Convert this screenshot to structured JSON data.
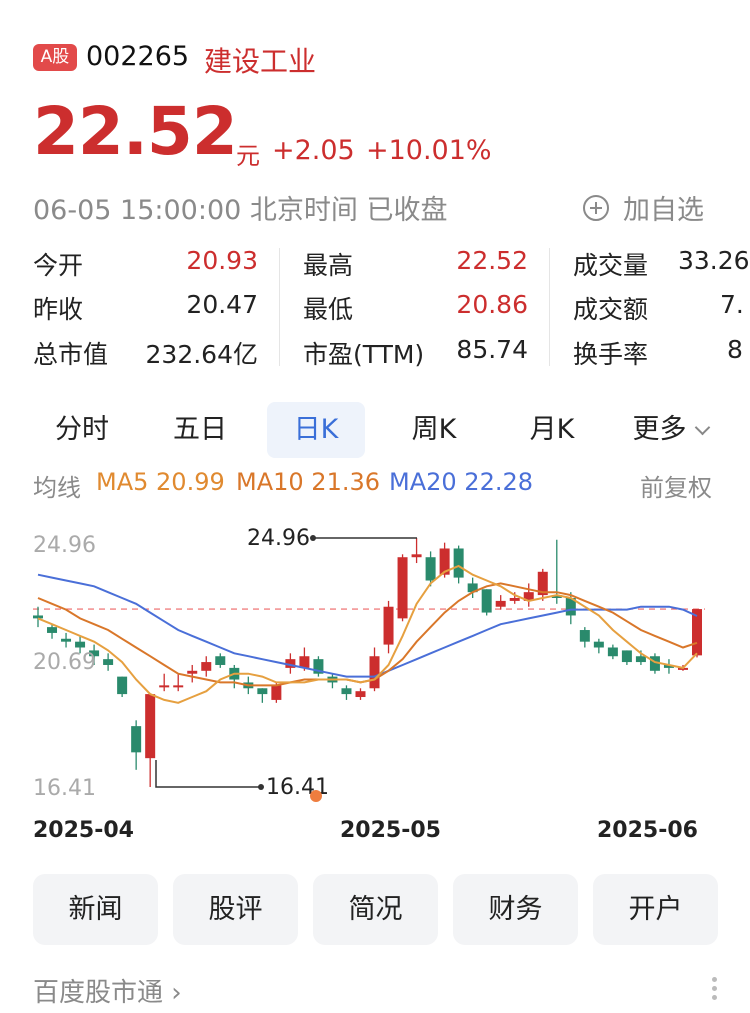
{
  "header": {
    "badge": "A股",
    "code": "002265",
    "name": "建设工业",
    "price": "22.52",
    "unit": "元",
    "change": "+2.05",
    "change_pct": "+10.01%",
    "time": "06-05 15:00:00 北京时间 已收盘",
    "add_watch": "加自选"
  },
  "stats": {
    "open_label": "今开",
    "open": "20.93",
    "prev_label": "昨收",
    "prev": "20.47",
    "mcap_label": "总市值",
    "mcap": "232.64亿",
    "high_label": "最高",
    "high": "22.52",
    "low_label": "最低",
    "low": "20.86",
    "pe_label": "市盈(TTM)",
    "pe": "85.74",
    "vol_label": "成交量",
    "vol": "33.26",
    "amt_label": "成交额",
    "amt": "7.",
    "turn_label": "换手率",
    "turn": "8"
  },
  "tabs": [
    "分时",
    "五日",
    "日K",
    "周K",
    "月K",
    "更多"
  ],
  "active_tab": "日K",
  "ma": {
    "label": "均线",
    "ma5": "MA5 20.99",
    "ma10": "MA10 21.36",
    "ma20": "MA20 22.28",
    "adjust": "前复权"
  },
  "colors": {
    "up": "#cc2e2e",
    "down": "#2a8a6c",
    "ma5": "#e08a30",
    "ma10": "#d9772a",
    "ma20": "#4a6fd8",
    "accent": "#3a6fd8"
  },
  "chart_data": {
    "type": "candlestick",
    "ylim": [
      16.41,
      24.96
    ],
    "y_ticks": [
      "24.96",
      "20.69",
      "16.41"
    ],
    "x_labels": [
      "2025-04",
      "2025-05",
      "2025-06"
    ],
    "max_label": "24.96",
    "min_label": "16.41",
    "last_close": 22.52,
    "candles": [
      [
        22.3,
        22.2,
        22.6,
        21.9
      ],
      [
        21.9,
        21.7,
        22.0,
        21.5
      ],
      [
        21.5,
        21.4,
        21.7,
        21.2
      ],
      [
        21.4,
        21.2,
        21.6,
        21.0
      ],
      [
        21.1,
        20.9,
        21.3,
        20.6
      ],
      [
        20.8,
        20.6,
        21.0,
        20.4
      ],
      [
        20.2,
        19.6,
        20.2,
        19.5
      ],
      [
        18.5,
        17.6,
        18.7,
        17.0
      ],
      [
        17.4,
        19.6,
        19.6,
        16.41
      ],
      [
        19.9,
        19.9,
        20.3,
        19.7
      ],
      [
        19.9,
        19.9,
        20.3,
        19.7
      ],
      [
        20.3,
        20.4,
        20.6,
        20.0
      ],
      [
        20.4,
        20.7,
        20.9,
        20.2
      ],
      [
        20.9,
        20.6,
        21.0,
        20.5
      ],
      [
        20.5,
        20.1,
        20.6,
        19.8
      ],
      [
        20.0,
        19.8,
        20.2,
        19.6
      ],
      [
        19.8,
        19.6,
        19.8,
        19.3
      ],
      [
        19.4,
        19.9,
        20.0,
        19.3
      ],
      [
        20.5,
        20.8,
        21.0,
        20.3
      ],
      [
        20.5,
        20.9,
        21.2,
        20.4
      ],
      [
        20.8,
        20.3,
        20.9,
        20.2
      ],
      [
        20.2,
        20.0,
        20.3,
        19.8
      ],
      [
        19.8,
        19.6,
        19.9,
        19.4
      ],
      [
        19.5,
        19.7,
        19.8,
        19.4
      ],
      [
        19.8,
        20.9,
        21.2,
        19.7
      ],
      [
        21.3,
        22.6,
        22.8,
        21.0
      ],
      [
        22.2,
        24.3,
        24.4,
        22.1
      ],
      [
        24.3,
        24.4,
        24.96,
        24.1
      ],
      [
        24.3,
        23.5,
        24.5,
        23.3
      ],
      [
        23.7,
        24.6,
        24.8,
        23.6
      ],
      [
        24.6,
        23.6,
        24.7,
        23.4
      ],
      [
        23.4,
        23.1,
        23.6,
        22.9
      ],
      [
        23.2,
        22.4,
        23.2,
        22.3
      ],
      [
        22.6,
        22.8,
        23.0,
        22.5
      ],
      [
        22.8,
        22.9,
        23.1,
        22.7
      ],
      [
        22.8,
        23.1,
        23.4,
        22.6
      ],
      [
        23.0,
        23.8,
        23.9,
        22.8
      ],
      [
        23.0,
        22.9,
        24.9,
        22.7
      ],
      [
        22.9,
        22.3,
        23.1,
        22.0
      ],
      [
        21.8,
        21.4,
        21.9,
        21.2
      ],
      [
        21.4,
        21.2,
        21.5,
        21.0
      ],
      [
        21.2,
        20.9,
        21.3,
        20.8
      ],
      [
        21.1,
        20.7,
        21.1,
        20.6
      ],
      [
        20.9,
        20.7,
        21.1,
        20.6
      ],
      [
        20.9,
        20.4,
        21.0,
        20.3
      ],
      [
        20.6,
        20.5,
        20.8,
        20.3
      ],
      [
        20.5,
        20.5,
        20.6,
        20.4
      ],
      [
        20.93,
        22.52,
        22.52,
        20.86
      ]
    ],
    "ma5": [
      22.2,
      22.0,
      21.8,
      21.6,
      21.4,
      21.1,
      20.7,
      20.1,
      19.6,
      19.4,
      19.3,
      19.5,
      19.7,
      20.1,
      20.3,
      20.3,
      20.2,
      20.0,
      20.0,
      20.0,
      20.1,
      20.1,
      20.1,
      20.0,
      20.1,
      20.6,
      21.6,
      22.7,
      23.4,
      23.8,
      24.0,
      23.7,
      23.5,
      23.3,
      23.0,
      22.8,
      22.9,
      23.0,
      22.9,
      22.6,
      22.3,
      21.8,
      21.4,
      21.0,
      20.7,
      20.6,
      20.5,
      21.0
    ],
    "ma10": [
      22.9,
      22.7,
      22.5,
      22.2,
      22.0,
      21.8,
      21.5,
      21.2,
      20.9,
      20.6,
      20.3,
      20.2,
      20.1,
      20.0,
      20.0,
      19.9,
      19.9,
      19.9,
      20.0,
      20.1,
      20.1,
      20.1,
      20.1,
      20.0,
      20.1,
      20.4,
      20.8,
      21.4,
      21.9,
      22.4,
      22.8,
      23.1,
      23.3,
      23.4,
      23.3,
      23.2,
      23.1,
      23.1,
      23.0,
      22.8,
      22.6,
      22.4,
      22.1,
      21.8,
      21.6,
      21.4,
      21.2,
      21.36
    ],
    "ma20": [
      23.7,
      23.6,
      23.5,
      23.4,
      23.3,
      23.1,
      22.9,
      22.7,
      22.4,
      22.1,
      21.8,
      21.6,
      21.4,
      21.2,
      21.0,
      20.9,
      20.8,
      20.7,
      20.6,
      20.5,
      20.4,
      20.3,
      20.2,
      20.2,
      20.2,
      20.4,
      20.6,
      20.8,
      21.0,
      21.2,
      21.4,
      21.6,
      21.8,
      22.0,
      22.1,
      22.2,
      22.3,
      22.4,
      22.5,
      22.5,
      22.5,
      22.5,
      22.5,
      22.6,
      22.6,
      22.6,
      22.5,
      22.28
    ]
  },
  "buttons": [
    "新闻",
    "股评",
    "简况",
    "财务",
    "开户"
  ],
  "footer": "百度股市通"
}
